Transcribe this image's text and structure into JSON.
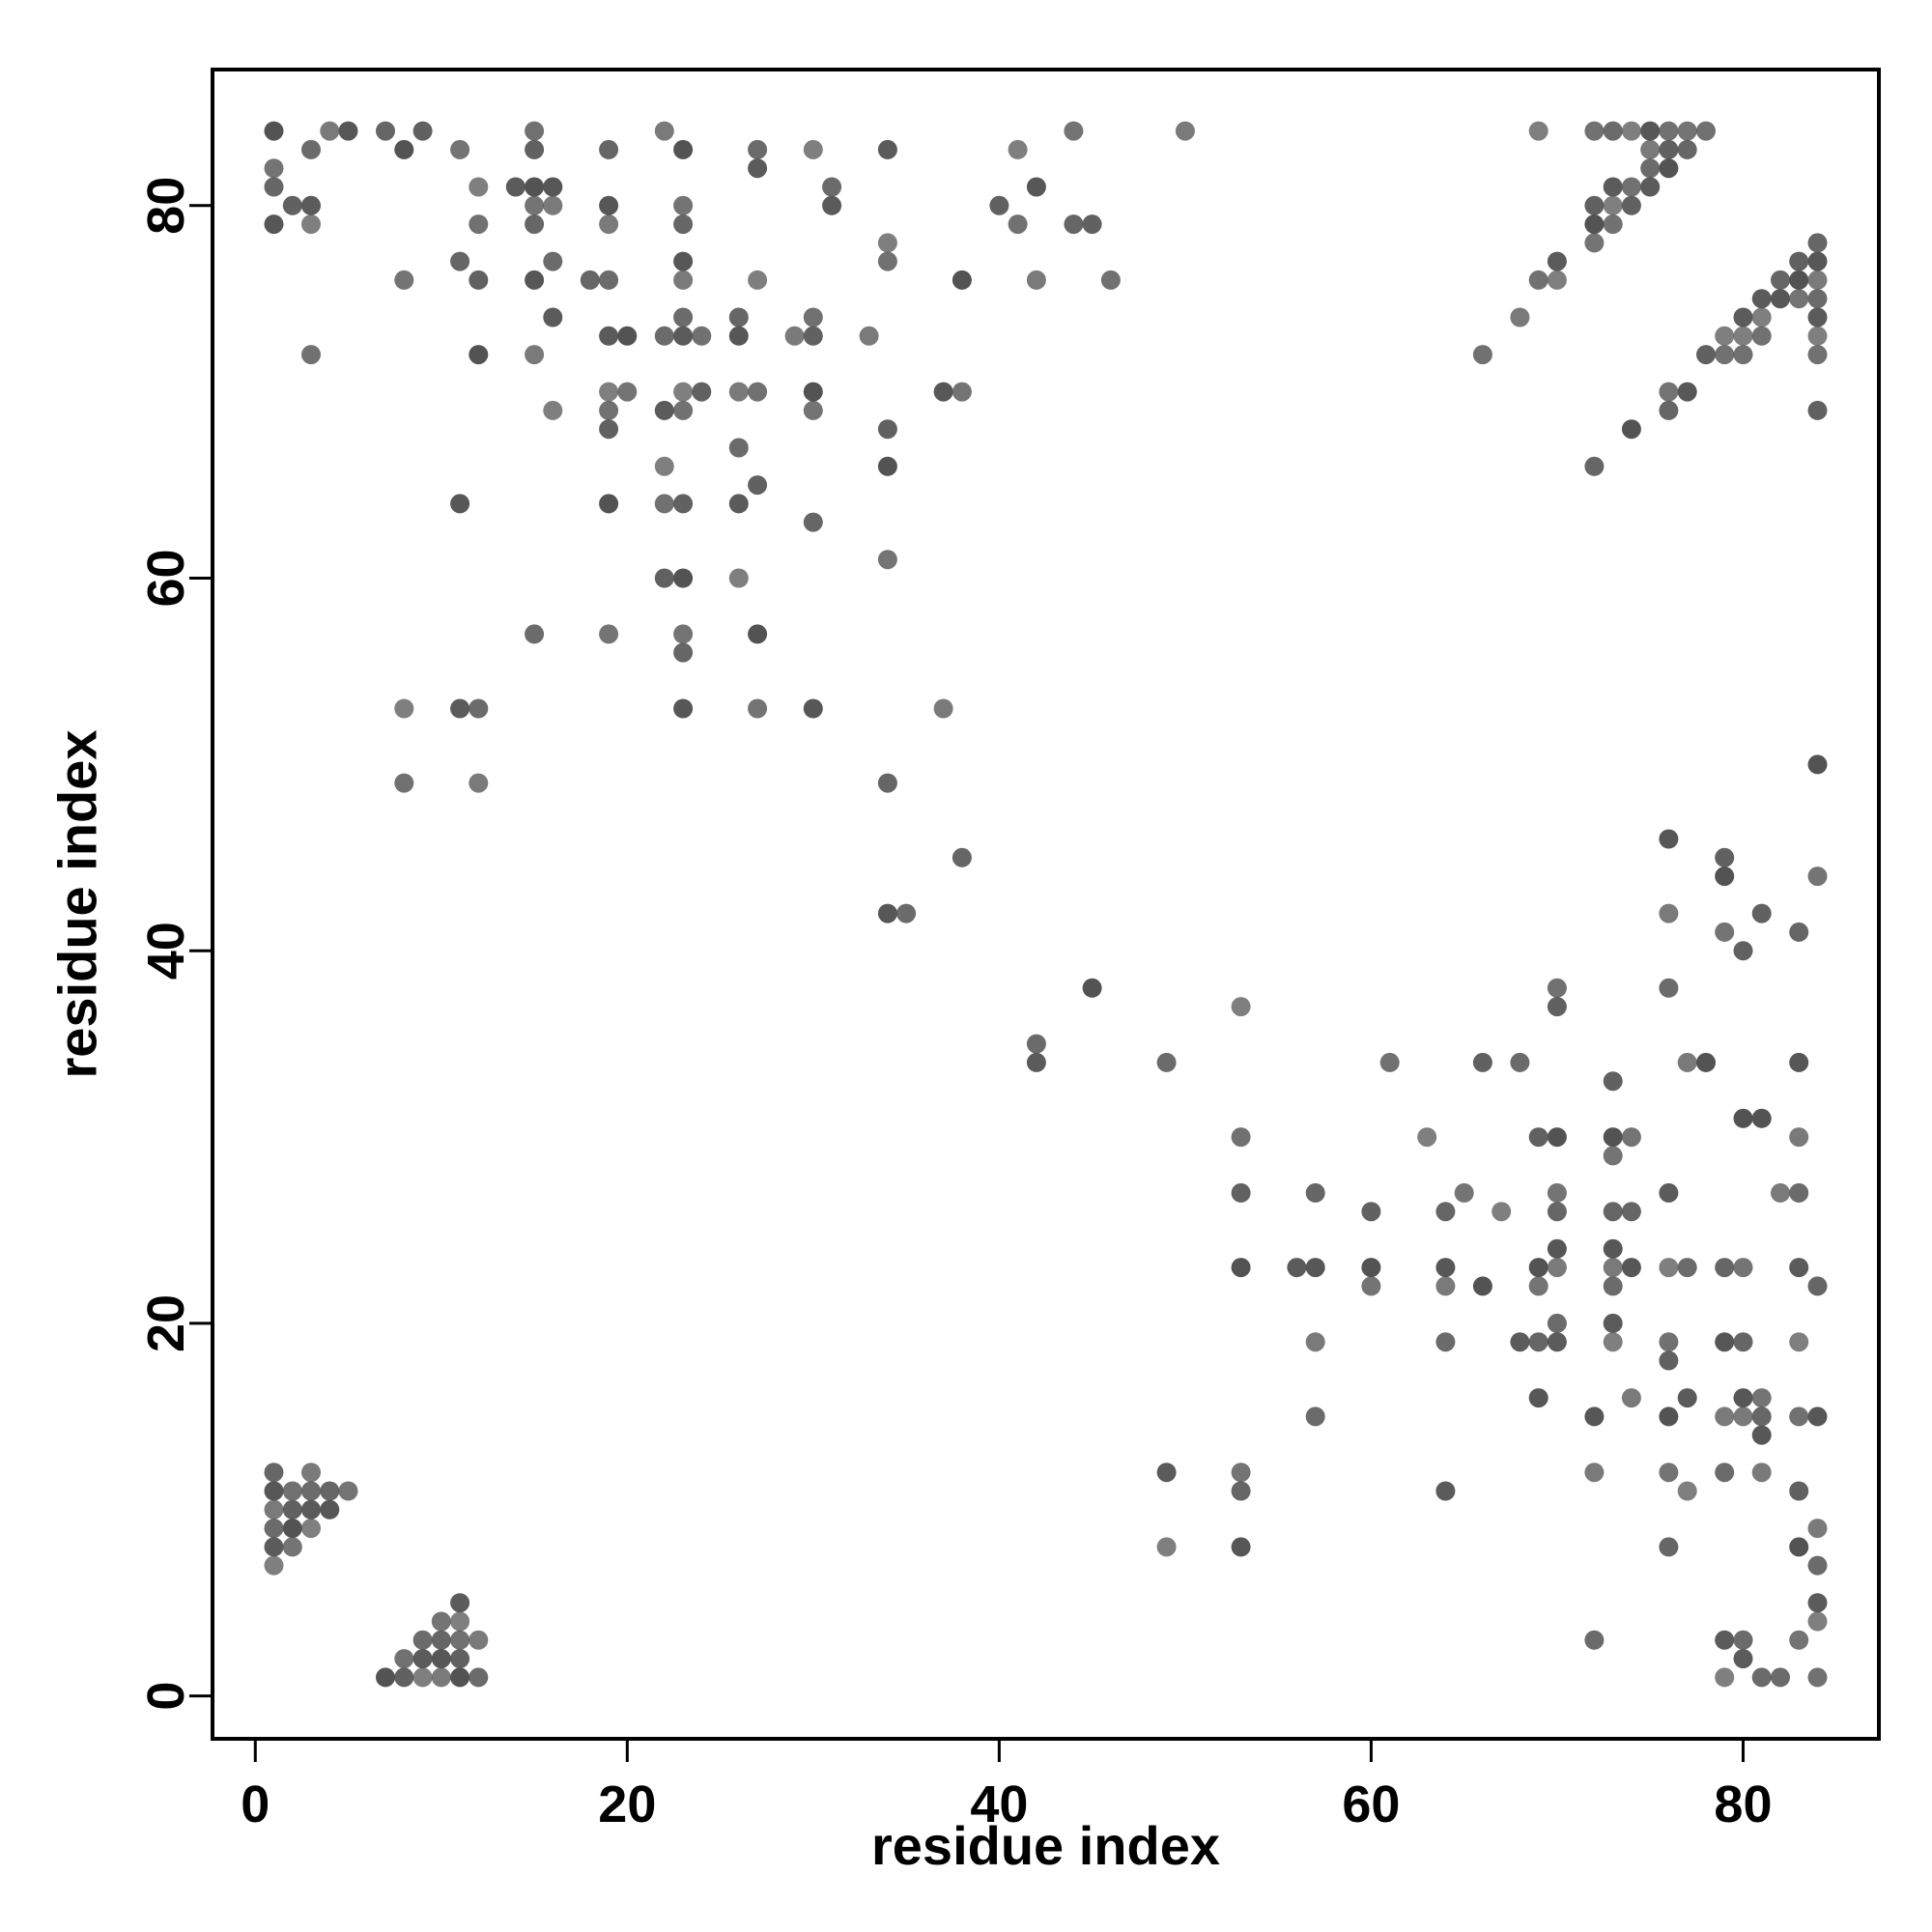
{
  "chart_data": {
    "type": "scatter",
    "xlabel": "residue index",
    "ylabel": "residue index",
    "xlim": [
      -2.3,
      87.3
    ],
    "ylim": [
      -2.3,
      87.3
    ],
    "xticks": [
      0,
      20,
      40,
      60,
      80
    ],
    "yticks": [
      0,
      20,
      40,
      60,
      80
    ],
    "grid": false,
    "legend": "none",
    "point_color": "#4d4d4d",
    "points": [
      [
        1,
        7
      ],
      [
        1,
        8
      ],
      [
        1,
        9
      ],
      [
        1,
        10
      ],
      [
        1,
        11
      ],
      [
        1,
        12
      ],
      [
        2,
        8
      ],
      [
        2,
        9
      ],
      [
        2,
        10
      ],
      [
        2,
        11
      ],
      [
        3,
        9
      ],
      [
        3,
        10
      ],
      [
        3,
        11
      ],
      [
        3,
        12
      ],
      [
        4,
        10
      ],
      [
        4,
        11
      ],
      [
        5,
        11
      ],
      [
        7,
        1
      ],
      [
        8,
        1
      ],
      [
        8,
        2
      ],
      [
        9,
        1
      ],
      [
        9,
        2
      ],
      [
        9,
        3
      ],
      [
        10,
        1
      ],
      [
        10,
        2
      ],
      [
        10,
        3
      ],
      [
        10,
        4
      ],
      [
        11,
        1
      ],
      [
        11,
        2
      ],
      [
        11,
        3
      ],
      [
        11,
        4
      ],
      [
        11,
        5
      ],
      [
        12,
        1
      ],
      [
        12,
        3
      ],
      [
        1,
        79
      ],
      [
        1,
        81
      ],
      [
        1,
        82
      ],
      [
        1,
        84
      ],
      [
        2,
        80
      ],
      [
        3,
        72
      ],
      [
        3,
        79
      ],
      [
        3,
        80
      ],
      [
        3,
        83
      ],
      [
        4,
        84
      ],
      [
        5,
        84
      ],
      [
        7,
        84
      ],
      [
        8,
        76
      ],
      [
        8,
        83
      ],
      [
        9,
        84
      ],
      [
        8,
        49
      ],
      [
        8,
        53
      ],
      [
        11,
        53
      ],
      [
        12,
        53
      ],
      [
        12,
        49
      ],
      [
        11,
        64
      ],
      [
        11,
        77
      ],
      [
        11,
        83
      ],
      [
        12,
        72
      ],
      [
        12,
        76
      ],
      [
        12,
        79
      ],
      [
        12,
        81
      ],
      [
        14,
        81
      ],
      [
        15,
        57
      ],
      [
        15,
        72
      ],
      [
        15,
        76
      ],
      [
        15,
        79
      ],
      [
        15,
        80
      ],
      [
        15,
        81
      ],
      [
        15,
        83
      ],
      [
        15,
        84
      ],
      [
        16,
        69
      ],
      [
        16,
        74
      ],
      [
        16,
        77
      ],
      [
        16,
        80
      ],
      [
        16,
        81
      ],
      [
        18,
        76
      ],
      [
        19,
        57
      ],
      [
        19,
        64
      ],
      [
        19,
        68
      ],
      [
        19,
        69
      ],
      [
        19,
        70
      ],
      [
        19,
        73
      ],
      [
        19,
        76
      ],
      [
        19,
        79
      ],
      [
        19,
        80
      ],
      [
        19,
        83
      ],
      [
        20,
        70
      ],
      [
        20,
        73
      ],
      [
        22,
        60
      ],
      [
        22,
        64
      ],
      [
        22,
        66
      ],
      [
        22,
        69
      ],
      [
        22,
        73
      ],
      [
        22,
        84
      ],
      [
        23,
        53
      ],
      [
        23,
        56
      ],
      [
        23,
        57
      ],
      [
        23,
        60
      ],
      [
        23,
        64
      ],
      [
        23,
        69
      ],
      [
        23,
        70
      ],
      [
        23,
        73
      ],
      [
        23,
        74
      ],
      [
        23,
        76
      ],
      [
        23,
        77
      ],
      [
        23,
        79
      ],
      [
        23,
        80
      ],
      [
        23,
        83
      ],
      [
        24,
        70
      ],
      [
        24,
        73
      ],
      [
        26,
        60
      ],
      [
        26,
        64
      ],
      [
        26,
        67
      ],
      [
        26,
        70
      ],
      [
        26,
        73
      ],
      [
        26,
        74
      ],
      [
        27,
        53
      ],
      [
        27,
        57
      ],
      [
        27,
        65
      ],
      [
        27,
        70
      ],
      [
        27,
        76
      ],
      [
        27,
        82
      ],
      [
        27,
        83
      ],
      [
        29,
        73
      ],
      [
        30,
        53
      ],
      [
        30,
        63
      ],
      [
        30,
        69
      ],
      [
        30,
        70
      ],
      [
        30,
        73
      ],
      [
        30,
        74
      ],
      [
        30,
        83
      ],
      [
        31,
        80
      ],
      [
        31,
        81
      ],
      [
        33,
        73
      ],
      [
        34,
        42
      ],
      [
        34,
        49
      ],
      [
        34,
        61
      ],
      [
        34,
        66
      ],
      [
        34,
        68
      ],
      [
        34,
        77
      ],
      [
        34,
        78
      ],
      [
        34,
        83
      ],
      [
        35,
        42
      ],
      [
        37,
        53
      ],
      [
        37,
        70
      ],
      [
        38,
        45
      ],
      [
        38,
        70
      ],
      [
        38,
        76
      ],
      [
        40,
        80
      ],
      [
        41,
        79
      ],
      [
        41,
        83
      ],
      [
        42,
        34
      ],
      [
        42,
        35
      ],
      [
        42,
        76
      ],
      [
        42,
        81
      ],
      [
        44,
        79
      ],
      [
        44,
        84
      ],
      [
        45,
        38
      ],
      [
        45,
        79
      ],
      [
        46,
        76
      ],
      [
        49,
        8
      ],
      [
        49,
        12
      ],
      [
        49,
        34
      ],
      [
        50,
        84
      ],
      [
        53,
        8
      ],
      [
        53,
        11
      ],
      [
        53,
        12
      ],
      [
        53,
        23
      ],
      [
        53,
        27
      ],
      [
        53,
        30
      ],
      [
        53,
        37
      ],
      [
        56,
        23
      ],
      [
        57,
        15
      ],
      [
        57,
        19
      ],
      [
        57,
        23
      ],
      [
        57,
        27
      ],
      [
        60,
        22
      ],
      [
        60,
        23
      ],
      [
        60,
        26
      ],
      [
        61,
        34
      ],
      [
        63,
        30
      ],
      [
        64,
        11
      ],
      [
        64,
        19
      ],
      [
        64,
        22
      ],
      [
        64,
        23
      ],
      [
        64,
        26
      ],
      [
        65,
        27
      ],
      [
        66,
        22
      ],
      [
        66,
        34
      ],
      [
        66,
        72
      ],
      [
        67,
        26
      ],
      [
        68,
        19
      ],
      [
        68,
        34
      ],
      [
        68,
        74
      ],
      [
        69,
        16
      ],
      [
        69,
        19
      ],
      [
        69,
        22
      ],
      [
        69,
        23
      ],
      [
        69,
        30
      ],
      [
        69,
        76
      ],
      [
        69,
        84
      ],
      [
        70,
        19
      ],
      [
        70,
        20
      ],
      [
        70,
        23
      ],
      [
        70,
        24
      ],
      [
        70,
        26
      ],
      [
        70,
        27
      ],
      [
        70,
        30
      ],
      [
        70,
        37
      ],
      [
        70,
        38
      ],
      [
        70,
        76
      ],
      [
        70,
        77
      ],
      [
        72,
        3
      ],
      [
        72,
        12
      ],
      [
        72,
        15
      ],
      [
        72,
        66
      ],
      [
        72,
        78
      ],
      [
        72,
        79
      ],
      [
        72,
        80
      ],
      [
        72,
        84
      ],
      [
        73,
        19
      ],
      [
        73,
        20
      ],
      [
        73,
        22
      ],
      [
        73,
        23
      ],
      [
        73,
        24
      ],
      [
        73,
        26
      ],
      [
        73,
        29
      ],
      [
        73,
        30
      ],
      [
        73,
        33
      ],
      [
        73,
        79
      ],
      [
        73,
        80
      ],
      [
        73,
        81
      ],
      [
        73,
        84
      ],
      [
        74,
        16
      ],
      [
        74,
        23
      ],
      [
        74,
        26
      ],
      [
        74,
        30
      ],
      [
        74,
        68
      ],
      [
        74,
        80
      ],
      [
        74,
        81
      ],
      [
        74,
        84
      ],
      [
        75,
        81
      ],
      [
        75,
        82
      ],
      [
        75,
        83
      ],
      [
        75,
        84
      ],
      [
        76,
        8
      ],
      [
        76,
        12
      ],
      [
        76,
        15
      ],
      [
        76,
        18
      ],
      [
        76,
        19
      ],
      [
        76,
        23
      ],
      [
        76,
        27
      ],
      [
        76,
        38
      ],
      [
        76,
        42
      ],
      [
        76,
        46
      ],
      [
        76,
        69
      ],
      [
        76,
        70
      ],
      [
        76,
        82
      ],
      [
        76,
        83
      ],
      [
        76,
        84
      ],
      [
        77,
        11
      ],
      [
        77,
        16
      ],
      [
        77,
        23
      ],
      [
        77,
        34
      ],
      [
        77,
        70
      ],
      [
        77,
        83
      ],
      [
        77,
        84
      ],
      [
        78,
        34
      ],
      [
        78,
        72
      ],
      [
        78,
        84
      ],
      [
        79,
        1
      ],
      [
        79,
        3
      ],
      [
        79,
        12
      ],
      [
        79,
        15
      ],
      [
        79,
        19
      ],
      [
        79,
        23
      ],
      [
        79,
        41
      ],
      [
        79,
        44
      ],
      [
        79,
        45
      ],
      [
        79,
        72
      ],
      [
        79,
        73
      ],
      [
        80,
        2
      ],
      [
        80,
        3
      ],
      [
        80,
        15
      ],
      [
        80,
        16
      ],
      [
        80,
        19
      ],
      [
        80,
        23
      ],
      [
        80,
        31
      ],
      [
        80,
        40
      ],
      [
        80,
        72
      ],
      [
        80,
        73
      ],
      [
        80,
        74
      ],
      [
        81,
        1
      ],
      [
        81,
        12
      ],
      [
        81,
        14
      ],
      [
        81,
        15
      ],
      [
        81,
        16
      ],
      [
        81,
        31
      ],
      [
        81,
        42
      ],
      [
        81,
        73
      ],
      [
        81,
        74
      ],
      [
        81,
        75
      ],
      [
        82,
        1
      ],
      [
        82,
        27
      ],
      [
        82,
        75
      ],
      [
        82,
        76
      ],
      [
        83,
        3
      ],
      [
        83,
        8
      ],
      [
        83,
        11
      ],
      [
        83,
        15
      ],
      [
        83,
        19
      ],
      [
        83,
        23
      ],
      [
        83,
        27
      ],
      [
        83,
        30
      ],
      [
        83,
        34
      ],
      [
        83,
        41
      ],
      [
        83,
        75
      ],
      [
        83,
        76
      ],
      [
        83,
        77
      ],
      [
        84,
        1
      ],
      [
        84,
        4
      ],
      [
        84,
        5
      ],
      [
        84,
        7
      ],
      [
        84,
        9
      ],
      [
        84,
        15
      ],
      [
        84,
        22
      ],
      [
        84,
        44
      ],
      [
        84,
        50
      ],
      [
        84,
        69
      ],
      [
        84,
        72
      ],
      [
        84,
        73
      ],
      [
        84,
        74
      ],
      [
        84,
        75
      ],
      [
        84,
        76
      ],
      [
        84,
        77
      ],
      [
        84,
        78
      ]
    ]
  }
}
